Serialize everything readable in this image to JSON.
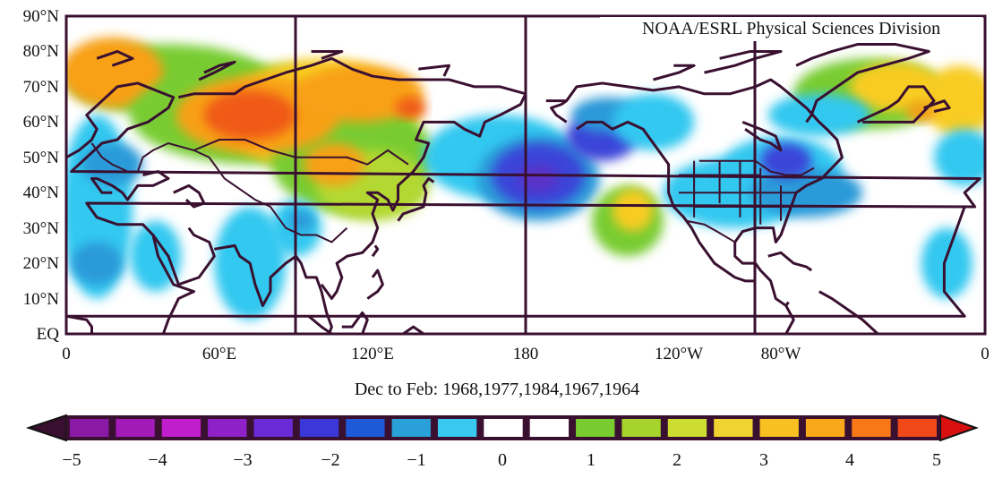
{
  "credit": "NOAA/ESRL Physical Sciences Division",
  "caption": "Dec to Feb: 1968,1977,1984,1967,1964",
  "lat_labels": [
    "90°N",
    "80°N",
    "70°N",
    "60°N",
    "50°N",
    "40°N",
    "30°N",
    "20°N",
    "10°N",
    "EQ"
  ],
  "lon_labels": [
    "0",
    "60°E",
    "120°E",
    "180",
    "120°W",
    "80°W",
    "0"
  ],
  "colorbar": {
    "ticks": [
      "−5",
      "−4",
      "−3",
      "−2",
      "−1",
      "0",
      "1",
      "2",
      "3",
      "4",
      "5"
    ],
    "colors": [
      "#8a1aa6",
      "#a21ab8",
      "#c01ecc",
      "#8e22c8",
      "#6a2ad6",
      "#3a38d8",
      "#1e5ad8",
      "#2aa0d8",
      "#38c8f0",
      "#ffffff",
      "#ffffff",
      "#78cc30",
      "#a6d42c",
      "#ccdc30",
      "#f0d230",
      "#f8c020",
      "#f8a818",
      "#f87818",
      "#f04818"
    ],
    "left_end_color": "#3a1030",
    "right_end_color": "#d81010"
  },
  "map": {
    "lon_range": [
      0,
      360
    ],
    "lat_range": [
      0,
      90
    ],
    "colors": {
      "orange_red": "#f05a18",
      "orange": "#f8a018",
      "yellow": "#f8cc20",
      "light_green": "#b4d830",
      "green": "#78cc30",
      "light_blue": "#30c8f0",
      "blue": "#2a9ad8",
      "dark_blue": "#3a44d8",
      "indigo": "#5a30c8",
      "land_outline": "#3a1030"
    }
  }
}
